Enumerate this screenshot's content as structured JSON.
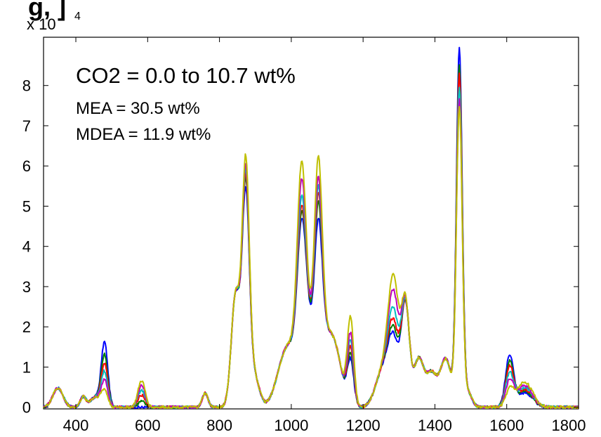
{
  "chart_data": {
    "type": "line",
    "title_fragment": "g,                                    ]",
    "exponent_label": {
      "base": "x 10",
      "exp": "4"
    },
    "xlim": [
      310,
      1800
    ],
    "ylim": [
      -400,
      92000
    ],
    "x_ticks": [
      400,
      600,
      800,
      1000,
      1200,
      1400,
      1600,
      1800
    ],
    "y_ticks": [
      0,
      10000,
      20000,
      30000,
      40000,
      50000,
      60000,
      70000,
      80000
    ],
    "y_tick_labels": [
      "0",
      "1",
      "2",
      "3",
      "4",
      "5",
      "6",
      "7",
      "8"
    ],
    "grid": false,
    "annotations": [
      "CO2 = 0.0 to 10.7 wt%",
      "MEA = 30.5 wt%",
      "MDEA = 11.9 wt%"
    ],
    "base_peaks": [
      [
        350,
        4800,
        14
      ],
      [
        420,
        2500,
        8
      ],
      [
        455,
        2500,
        15
      ],
      [
        480,
        14000,
        9
      ],
      [
        583,
        3000,
        10
      ],
      [
        760,
        3500,
        8
      ],
      [
        845,
        28000,
        12
      ],
      [
        873,
        55000,
        10
      ],
      [
        895,
        8000,
        15
      ],
      [
        970,
        6000,
        20
      ],
      [
        1000,
        13000,
        22
      ],
      [
        1028,
        33000,
        12
      ],
      [
        1045,
        18000,
        15
      ],
      [
        1075,
        40000,
        11
      ],
      [
        1095,
        14000,
        18
      ],
      [
        1125,
        12000,
        18
      ],
      [
        1165,
        14000,
        9
      ],
      [
        1255,
        9000,
        20
      ],
      [
        1285,
        18000,
        15
      ],
      [
        1318,
        25000,
        11
      ],
      [
        1355,
        12000,
        14
      ],
      [
        1390,
        8000,
        14
      ],
      [
        1430,
        12000,
        16
      ],
      [
        1468,
        80000,
        8
      ],
      [
        1490,
        4000,
        12
      ],
      [
        1608,
        11500,
        11
      ],
      [
        1650,
        4500,
        22
      ]
    ],
    "series": [
      {
        "color": "#0000ff",
        "scale": {
          "480": 1.12,
          "1075": 0.92,
          "1028": 0.95,
          "1165": 0.8,
          "1285": 0.85,
          "1608": 1.1,
          "1650": 0.8,
          "583": 0.0,
          "1468": 1.1,
          "873": 0.92
        }
      },
      {
        "color": "#007f00",
        "scale": {
          "480": 0.9,
          "1075": 1.02,
          "1028": 1.0,
          "1165": 0.9,
          "1285": 0.95,
          "1608": 0.95,
          "1650": 0.9,
          "583": 0.5,
          "1468": 1.05,
          "873": 0.96
        }
      },
      {
        "color": "#ff0000",
        "scale": {
          "480": 0.75,
          "1075": 1.08,
          "1028": 1.05,
          "1165": 1.0,
          "1285": 1.05,
          "1608": 0.85,
          "1650": 1.0,
          "583": 1.0,
          "1468": 1.02,
          "873": 0.98
        }
      },
      {
        "color": "#00bfbf",
        "scale": {
          "480": 0.6,
          "1075": 1.12,
          "1028": 1.12,
          "1165": 1.12,
          "1285": 1.2,
          "1608": 0.7,
          "1650": 1.1,
          "583": 1.4,
          "1468": 0.98,
          "873": 1.0
        }
      },
      {
        "color": "#bf00bf",
        "scale": {
          "480": 0.45,
          "1075": 1.18,
          "1028": 1.25,
          "1165": 1.25,
          "1285": 1.45,
          "1608": 0.55,
          "1650": 1.2,
          "583": 1.8,
          "1468": 0.94,
          "873": 1.02
        }
      },
      {
        "color": "#bfbf00",
        "scale": {
          "480": 0.28,
          "1075": 1.3,
          "1028": 1.38,
          "1165": 1.55,
          "1285": 1.65,
          "1608": 0.35,
          "1650": 1.4,
          "583": 2.2,
          "1468": 0.92,
          "873": 1.06
        }
      }
    ]
  }
}
